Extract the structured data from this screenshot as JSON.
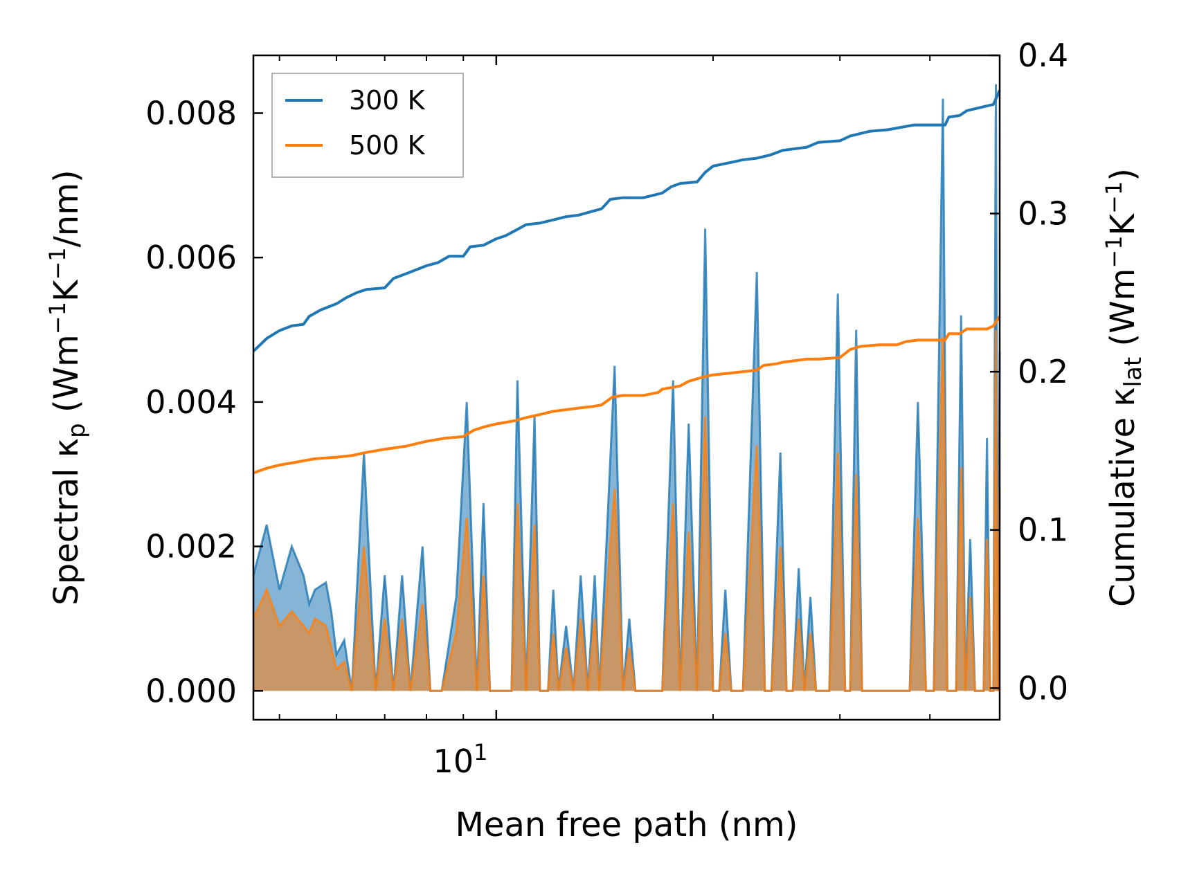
{
  "chart_data": {
    "type": "line",
    "xscale": "log",
    "xlabel": "Mean free path (nm)",
    "xlim": [
      4.6,
      50
    ],
    "x_tick_label": {
      "base": "10",
      "exp": "1",
      "value": 10
    },
    "left_axis": {
      "label": {
        "pre": "Spectral κ",
        "sub": "p",
        "post1": " (Wm",
        "sup1": "−1",
        "mid": "K",
        "sup2": "−1",
        "post2": "/nm)"
      },
      "ylim": [
        -0.0004,
        0.0088
      ],
      "ticks": [
        0.0,
        0.002,
        0.004,
        0.006,
        0.008
      ],
      "tick_labels": [
        "0.000",
        "0.002",
        "0.004",
        "0.006",
        "0.008"
      ]
    },
    "right_axis": {
      "label": {
        "pre": "Cumulative κ",
        "sub": "lat",
        "post1": " (Wm",
        "sup1": "−1",
        "mid": "K",
        "sup2": "−1",
        "post2": ")"
      },
      "ylim": [
        -0.02,
        0.4
      ],
      "ticks": [
        0.0,
        0.1,
        0.2,
        0.3,
        0.4
      ],
      "tick_labels": [
        "0.0",
        "0.1",
        "0.2",
        "0.3",
        "0.4"
      ]
    },
    "legend": {
      "position": "top-left",
      "entries": [
        "300 K",
        "500 K"
      ]
    },
    "series": [
      {
        "name": "300 K",
        "color": "#1f77b4",
        "cumulative": [
          [
            4.6,
            0.213
          ],
          [
            4.7,
            0.217
          ],
          [
            4.8,
            0.221
          ],
          [
            5.0,
            0.226
          ],
          [
            5.2,
            0.229
          ],
          [
            5.4,
            0.23
          ],
          [
            5.5,
            0.235
          ],
          [
            5.7,
            0.239
          ],
          [
            6.0,
            0.243
          ],
          [
            6.2,
            0.247
          ],
          [
            6.4,
            0.25
          ],
          [
            6.6,
            0.252
          ],
          [
            7.0,
            0.253
          ],
          [
            7.2,
            0.259
          ],
          [
            7.5,
            0.262
          ],
          [
            8.0,
            0.267
          ],
          [
            8.3,
            0.269
          ],
          [
            8.6,
            0.273
          ],
          [
            9.0,
            0.273
          ],
          [
            9.2,
            0.279
          ],
          [
            9.6,
            0.28
          ],
          [
            10.0,
            0.284
          ],
          [
            10.3,
            0.286
          ],
          [
            10.6,
            0.289
          ],
          [
            11.0,
            0.293
          ],
          [
            11.5,
            0.294
          ],
          [
            12.0,
            0.296
          ],
          [
            12.5,
            0.298
          ],
          [
            13.0,
            0.299
          ],
          [
            14.0,
            0.303
          ],
          [
            14.4,
            0.309
          ],
          [
            15.0,
            0.31
          ],
          [
            16.0,
            0.31
          ],
          [
            17.0,
            0.313
          ],
          [
            17.5,
            0.317
          ],
          [
            18.0,
            0.319
          ],
          [
            19.0,
            0.32
          ],
          [
            19.5,
            0.326
          ],
          [
            20.0,
            0.33
          ],
          [
            21.0,
            0.332
          ],
          [
            22.0,
            0.334
          ],
          [
            23.0,
            0.335
          ],
          [
            24.0,
            0.337
          ],
          [
            25.0,
            0.34
          ],
          [
            26.0,
            0.341
          ],
          [
            27.0,
            0.342
          ],
          [
            28.0,
            0.345
          ],
          [
            30.0,
            0.346
          ],
          [
            31.0,
            0.349
          ],
          [
            33.0,
            0.352
          ],
          [
            35.0,
            0.353
          ],
          [
            38.0,
            0.356
          ],
          [
            42.0,
            0.356
          ],
          [
            42.5,
            0.361
          ],
          [
            44.0,
            0.362
          ],
          [
            45.0,
            0.365
          ],
          [
            48.0,
            0.368
          ],
          [
            49.0,
            0.369
          ],
          [
            50.0,
            0.378
          ]
        ],
        "spectral": [
          [
            4.6,
            0.0016
          ],
          [
            4.8,
            0.0023
          ],
          [
            5.0,
            0.0014
          ],
          [
            5.2,
            0.002
          ],
          [
            5.4,
            0.0016
          ],
          [
            5.5,
            0.0012
          ],
          [
            5.6,
            0.0014
          ],
          [
            5.8,
            0.0015
          ],
          [
            5.9,
            0.0011
          ],
          [
            6.0,
            0.0005
          ],
          [
            6.15,
            0.0007
          ],
          [
            6.3,
            0.0
          ],
          [
            6.55,
            0.0033
          ],
          [
            6.8,
            0.0
          ],
          [
            7.0,
            0.0016
          ],
          [
            7.2,
            0.0
          ],
          [
            7.4,
            0.0016
          ],
          [
            7.6,
            0.0
          ],
          [
            7.9,
            0.002
          ],
          [
            8.1,
            0.0
          ],
          [
            8.4,
            0.0
          ],
          [
            8.8,
            0.0013
          ],
          [
            9.1,
            0.004
          ],
          [
            9.4,
            0.0
          ],
          [
            9.6,
            0.0026
          ],
          [
            9.8,
            0.0
          ],
          [
            10.1,
            0.0
          ],
          [
            10.5,
            0.0
          ],
          [
            10.7,
            0.0043
          ],
          [
            11.0,
            0.0
          ],
          [
            11.3,
            0.0038
          ],
          [
            11.5,
            0.0
          ],
          [
            11.8,
            0.0
          ],
          [
            12.0,
            0.0014
          ],
          [
            12.2,
            0.0
          ],
          [
            12.5,
            0.0009
          ],
          [
            12.8,
            0.0
          ],
          [
            13.1,
            0.0016
          ],
          [
            13.4,
            0.0
          ],
          [
            13.7,
            0.0016
          ],
          [
            13.9,
            0.0
          ],
          [
            14.2,
            0.0019
          ],
          [
            14.6,
            0.0045
          ],
          [
            15.0,
            0.0
          ],
          [
            15.3,
            0.001
          ],
          [
            15.6,
            0.0
          ],
          [
            16.2,
            0.0
          ],
          [
            17.0,
            0.0
          ],
          [
            17.6,
            0.0043
          ],
          [
            18.0,
            0.0
          ],
          [
            18.5,
            0.0037
          ],
          [
            19.0,
            0.0
          ],
          [
            19.5,
            0.0064
          ],
          [
            20.0,
            0.0
          ],
          [
            20.4,
            0.0
          ],
          [
            20.8,
            0.0014
          ],
          [
            21.2,
            0.0
          ],
          [
            22.0,
            0.0
          ],
          [
            23.0,
            0.0058
          ],
          [
            23.6,
            0.0
          ],
          [
            24.1,
            0.0
          ],
          [
            24.8,
            0.0033
          ],
          [
            25.3,
            0.0
          ],
          [
            25.8,
            0.0
          ],
          [
            26.3,
            0.0017
          ],
          [
            26.8,
            0.0
          ],
          [
            27.3,
            0.0013
          ],
          [
            27.8,
            0.0
          ],
          [
            29.0,
            0.0
          ],
          [
            29.8,
            0.0055
          ],
          [
            30.5,
            0.0
          ],
          [
            31.0,
            0.0
          ],
          [
            31.6,
            0.005
          ],
          [
            32.2,
            0.0
          ],
          [
            36.0,
            0.0
          ],
          [
            37.5,
            0.0
          ],
          [
            38.5,
            0.004
          ],
          [
            39.5,
            0.0
          ],
          [
            40.5,
            0.0
          ],
          [
            41.7,
            0.0082
          ],
          [
            42.3,
            0.0
          ],
          [
            43.5,
            0.0
          ],
          [
            44.2,
            0.0052
          ],
          [
            44.8,
            0.0
          ],
          [
            45.5,
            0.0021
          ],
          [
            46.2,
            0.0
          ],
          [
            47.5,
            0.0
          ],
          [
            48.0,
            0.0035
          ],
          [
            48.5,
            0.0
          ],
          [
            49.0,
            0.0
          ],
          [
            49.4,
            0.0084
          ],
          [
            49.7,
            0.0
          ],
          [
            50.0,
            0.0047
          ]
        ]
      },
      {
        "name": "500 K",
        "color": "#ff7f0e",
        "cumulative": [
          [
            4.6,
            0.136
          ],
          [
            4.8,
            0.139
          ],
          [
            5.0,
            0.141
          ],
          [
            5.3,
            0.143
          ],
          [
            5.6,
            0.145
          ],
          [
            6.0,
            0.146
          ],
          [
            6.3,
            0.147
          ],
          [
            6.6,
            0.149
          ],
          [
            7.0,
            0.151
          ],
          [
            7.5,
            0.153
          ],
          [
            8.0,
            0.156
          ],
          [
            8.5,
            0.158
          ],
          [
            9.0,
            0.159
          ],
          [
            9.3,
            0.163
          ],
          [
            9.6,
            0.165
          ],
          [
            10.0,
            0.167
          ],
          [
            10.6,
            0.169
          ],
          [
            11.0,
            0.171
          ],
          [
            11.5,
            0.173
          ],
          [
            12.0,
            0.175
          ],
          [
            12.5,
            0.176
          ],
          [
            13.0,
            0.177
          ],
          [
            13.6,
            0.178
          ],
          [
            14.0,
            0.179
          ],
          [
            14.5,
            0.184
          ],
          [
            15.0,
            0.185
          ],
          [
            16.0,
            0.185
          ],
          [
            16.8,
            0.187
          ],
          [
            17.0,
            0.189
          ],
          [
            18.0,
            0.191
          ],
          [
            18.5,
            0.194
          ],
          [
            19.5,
            0.197
          ],
          [
            20.0,
            0.198
          ],
          [
            21.0,
            0.199
          ],
          [
            22.0,
            0.2
          ],
          [
            23.0,
            0.201
          ],
          [
            23.5,
            0.204
          ],
          [
            24.5,
            0.205
          ],
          [
            25.0,
            0.206
          ],
          [
            26.0,
            0.207
          ],
          [
            27.0,
            0.208
          ],
          [
            28.0,
            0.208
          ],
          [
            30.0,
            0.209
          ],
          [
            31.0,
            0.214
          ],
          [
            32.0,
            0.216
          ],
          [
            34.0,
            0.217
          ],
          [
            36.0,
            0.217
          ],
          [
            37.0,
            0.219
          ],
          [
            38.5,
            0.22
          ],
          [
            42.0,
            0.22
          ],
          [
            42.5,
            0.224
          ],
          [
            44.0,
            0.224
          ],
          [
            45.0,
            0.227
          ],
          [
            48.0,
            0.227
          ],
          [
            49.0,
            0.229
          ],
          [
            50.0,
            0.235
          ]
        ],
        "spectral": [
          [
            4.6,
            0.001
          ],
          [
            4.8,
            0.0014
          ],
          [
            5.0,
            0.0009
          ],
          [
            5.2,
            0.0011
          ],
          [
            5.4,
            0.0009
          ],
          [
            5.5,
            0.0008
          ],
          [
            5.6,
            0.001
          ],
          [
            5.8,
            0.0009
          ],
          [
            5.9,
            0.0006
          ],
          [
            6.0,
            0.0003
          ],
          [
            6.15,
            0.0004
          ],
          [
            6.3,
            0.0
          ],
          [
            6.55,
            0.002
          ],
          [
            6.8,
            0.0
          ],
          [
            7.0,
            0.001
          ],
          [
            7.2,
            0.0
          ],
          [
            7.4,
            0.001
          ],
          [
            7.6,
            0.0
          ],
          [
            7.9,
            0.0012
          ],
          [
            8.1,
            0.0
          ],
          [
            8.4,
            0.0
          ],
          [
            8.8,
            0.0008
          ],
          [
            9.1,
            0.0024
          ],
          [
            9.4,
            0.0
          ],
          [
            9.6,
            0.0016
          ],
          [
            9.8,
            0.0
          ],
          [
            10.1,
            0.0
          ],
          [
            10.5,
            0.0
          ],
          [
            10.7,
            0.0026
          ],
          [
            11.0,
            0.0
          ],
          [
            11.3,
            0.0023
          ],
          [
            11.5,
            0.0
          ],
          [
            11.8,
            0.0
          ],
          [
            12.0,
            0.0008
          ],
          [
            12.2,
            0.0
          ],
          [
            12.5,
            0.0006
          ],
          [
            12.8,
            0.0
          ],
          [
            13.1,
            0.001
          ],
          [
            13.4,
            0.0
          ],
          [
            13.7,
            0.001
          ],
          [
            13.9,
            0.0
          ],
          [
            14.2,
            0.0012
          ],
          [
            14.6,
            0.0028
          ],
          [
            15.0,
            0.0
          ],
          [
            15.3,
            0.0006
          ],
          [
            15.6,
            0.0
          ],
          [
            16.2,
            0.0
          ],
          [
            17.0,
            0.0
          ],
          [
            17.6,
            0.0026
          ],
          [
            18.0,
            0.0
          ],
          [
            18.5,
            0.0022
          ],
          [
            19.0,
            0.0
          ],
          [
            19.5,
            0.0038
          ],
          [
            20.0,
            0.0
          ],
          [
            20.4,
            0.0
          ],
          [
            20.8,
            0.0008
          ],
          [
            21.2,
            0.0
          ],
          [
            22.0,
            0.0
          ],
          [
            23.0,
            0.0034
          ],
          [
            23.6,
            0.0
          ],
          [
            24.1,
            0.0
          ],
          [
            24.8,
            0.002
          ],
          [
            25.3,
            0.0
          ],
          [
            25.8,
            0.0
          ],
          [
            26.3,
            0.001
          ],
          [
            26.8,
            0.0
          ],
          [
            27.3,
            0.0008
          ],
          [
            27.8,
            0.0
          ],
          [
            29.0,
            0.0
          ],
          [
            29.8,
            0.0033
          ],
          [
            30.5,
            0.0
          ],
          [
            31.0,
            0.0
          ],
          [
            31.6,
            0.003
          ],
          [
            32.2,
            0.0
          ],
          [
            36.0,
            0.0
          ],
          [
            37.5,
            0.0
          ],
          [
            38.5,
            0.0024
          ],
          [
            39.5,
            0.0
          ],
          [
            40.5,
            0.0
          ],
          [
            41.7,
            0.0049
          ],
          [
            42.3,
            0.0
          ],
          [
            43.5,
            0.0
          ],
          [
            44.2,
            0.0031
          ],
          [
            44.8,
            0.0
          ],
          [
            45.5,
            0.0013
          ],
          [
            46.2,
            0.0
          ],
          [
            47.5,
            0.0
          ],
          [
            48.0,
            0.0021
          ],
          [
            48.5,
            0.0
          ],
          [
            49.0,
            0.0
          ],
          [
            49.4,
            0.005
          ],
          [
            49.7,
            0.0
          ],
          [
            50.0,
            0.0028
          ]
        ]
      }
    ]
  }
}
